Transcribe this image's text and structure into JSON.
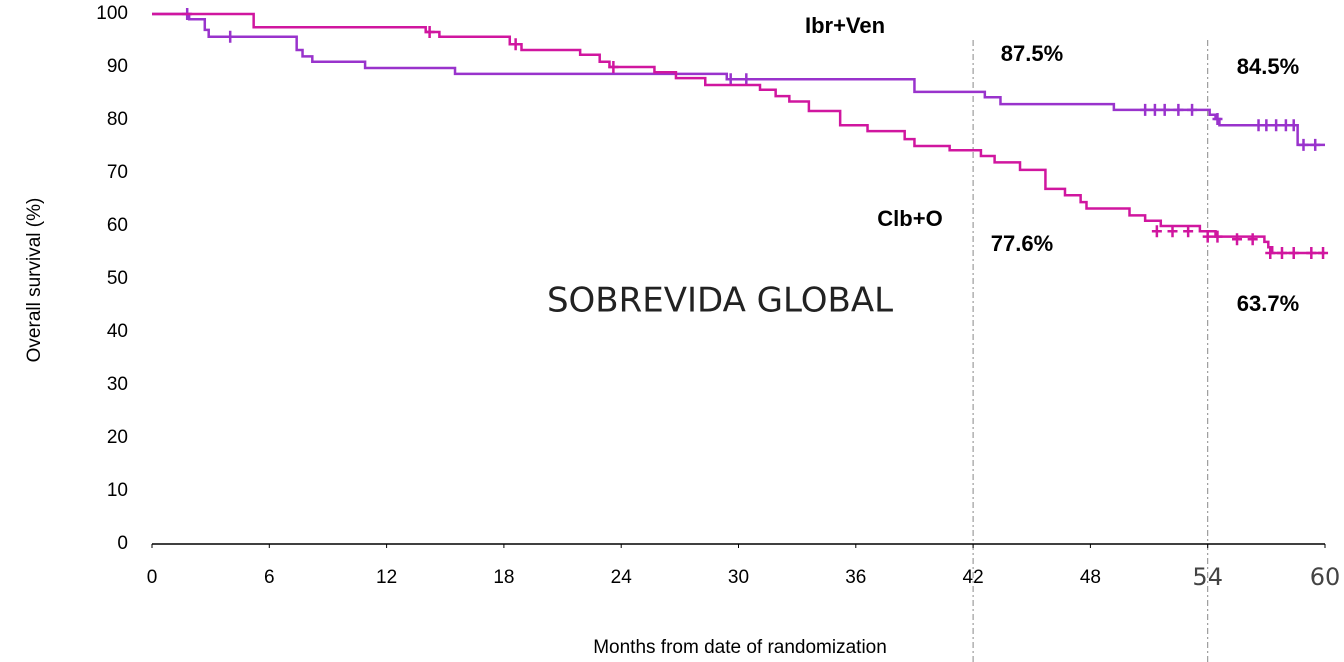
{
  "chart_data": {
    "type": "step",
    "title": "SOBREVIDA GLOBAL",
    "x_label": "Months from date of randomization",
    "y_label": "Overall survival (%)",
    "xlim": [
      0,
      60
    ],
    "ylim": [
      0,
      100
    ],
    "xticks": [
      0,
      6,
      12,
      18,
      24,
      30,
      36,
      42,
      48,
      54,
      60
    ],
    "yticks": [
      0,
      10,
      20,
      30,
      40,
      50,
      60,
      70,
      80,
      90,
      100
    ],
    "reference_x": [
      42,
      54
    ],
    "annotations": [
      {
        "text": "Ibr+Ven"
      },
      {
        "text": "Clb+O"
      },
      {
        "text": "87.5%"
      },
      {
        "text": "84.5%"
      },
      {
        "text": "77.6%"
      },
      {
        "text": "63.7%"
      }
    ],
    "series": [
      {
        "name": "Ibr+Ven",
        "color": "#9933cc",
        "x": [
          0,
          1.9,
          2.7,
          2.9,
          7.4,
          7.7,
          8.2,
          10.9,
          15.5,
          29.4,
          39,
          42.6,
          43.4,
          49.2,
          54.1,
          54.4,
          54.6,
          58.6,
          60
        ],
        "values": [
          100,
          99,
          97,
          95.7,
          93.2,
          92,
          91,
          89.8,
          88.7,
          87.7,
          85.3,
          84.3,
          83,
          81.9,
          81,
          80.2,
          79,
          75.3,
          75.3
        ],
        "censored_x": [
          1.8,
          4,
          29.6,
          30.4,
          50.8,
          51.3,
          51.8,
          52.5,
          53.2,
          54.5,
          56.6,
          57,
          57.5,
          58,
          58.4,
          58.9,
          59.5
        ],
        "censored_y": [
          100,
          95.7,
          87.7,
          87.7,
          81.9,
          81.9,
          81.9,
          81.9,
          81.9,
          80.2,
          79,
          79,
          79,
          79,
          79,
          75.3,
          75.3
        ]
      },
      {
        "name": "Clb+O",
        "color": "#d0169f",
        "x": [
          0,
          5.2,
          14,
          14.7,
          18.3,
          18.9,
          21.9,
          22.9,
          23.4,
          25.7,
          26.8,
          28.3,
          31.1,
          31.9,
          32.6,
          33.6,
          35.2,
          36.6,
          38.5,
          39,
          40.8,
          42.4,
          43.1,
          44.4,
          45.7,
          46.7,
          47.5,
          47.8,
          50,
          50.8,
          51.6,
          53.6,
          54.4,
          56.9,
          57.1,
          57.3,
          60
        ],
        "values": [
          100,
          97.5,
          96.6,
          95.7,
          94.3,
          93.2,
          92.3,
          91,
          90,
          89,
          87.9,
          86.6,
          85.7,
          84.5,
          83.5,
          81.7,
          79,
          77.9,
          76.4,
          75.1,
          74.3,
          73.2,
          72,
          70.6,
          67,
          65.8,
          64.5,
          63.3,
          62,
          61,
          60,
          59,
          58,
          57,
          56,
          54.9,
          54.9
        ],
        "censored_x": [
          14.2,
          18.6,
          23.6,
          51.4,
          52.2,
          53,
          54,
          54.5,
          55.5,
          56.3,
          57.2,
          57.8,
          58.4,
          59.3,
          59.9
        ],
        "censored_y": [
          96.6,
          94.3,
          90,
          59,
          59,
          59,
          58,
          58,
          57.5,
          57.5,
          54.9,
          54.9,
          54.9,
          54.9,
          54.9
        ]
      }
    ]
  }
}
